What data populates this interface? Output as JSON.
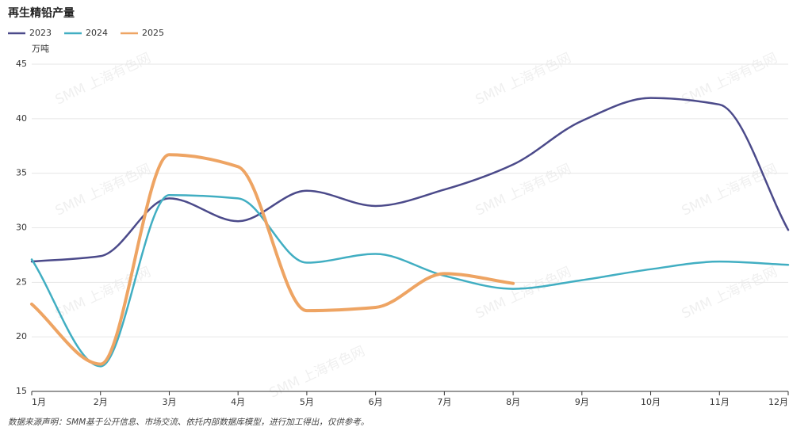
{
  "chart_data": {
    "type": "line",
    "title": "再生精铅产量",
    "y_label": "万吨",
    "categories": [
      "1月",
      "2月",
      "3月",
      "4月",
      "5月",
      "6月",
      "7月",
      "8月",
      "9月",
      "10月",
      "11月",
      "12月"
    ],
    "series": [
      {
        "name": "2023",
        "color": "#4b4a8a",
        "values": [
          26.9,
          27.4,
          32.7,
          30.6,
          33.4,
          32.0,
          33.5,
          35.8,
          39.8,
          41.9,
          41.3,
          29.8
        ]
      },
      {
        "name": "2024",
        "color": "#41aec2",
        "values": [
          27.1,
          17.3,
          33.0,
          32.7,
          26.8,
          27.6,
          25.6,
          24.4,
          25.2,
          26.2,
          26.9,
          26.6
        ]
      },
      {
        "name": "2025",
        "color": "#eea463",
        "values": [
          23.0,
          17.5,
          36.7,
          35.6,
          22.4,
          22.7,
          25.8,
          24.9,
          null,
          null,
          null,
          null
        ]
      }
    ],
    "ylim": [
      15,
      45
    ],
    "yticks": [
      15,
      20,
      25,
      30,
      35,
      40,
      45
    ],
    "grid": true,
    "legend": "top-left",
    "watermark": "SMM 上海有色网",
    "source_note": "数据来源声明：SMM基于公开信息、市场交流、依托内部数据库模型，进行加工得出，仅供参考。"
  }
}
